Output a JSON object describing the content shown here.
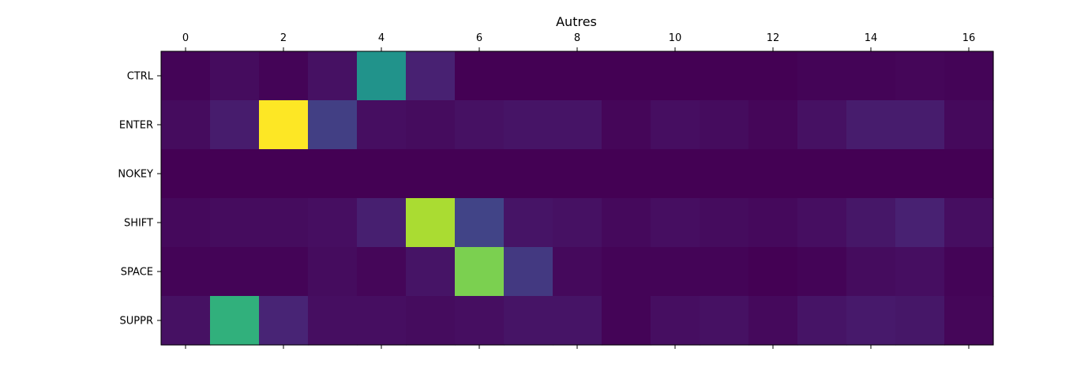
{
  "chart_data": {
    "type": "heatmap",
    "title": "Autres",
    "colormap": "viridis",
    "x": [
      0,
      1,
      2,
      3,
      4,
      5,
      6,
      7,
      8,
      9,
      10,
      11,
      12,
      13,
      14,
      15,
      16
    ],
    "x_ticks": [
      "0",
      "2",
      "4",
      "6",
      "8",
      "10",
      "12",
      "14",
      "16"
    ],
    "x_axis_position": "top",
    "rows": [
      "CTRL",
      "ENTER",
      "NOKEY",
      "SHIFT",
      "SPACE",
      "SUPPR"
    ],
    "values": [
      [
        0.01,
        0.04,
        0.01,
        0.06,
        0.51,
        0.12,
        0.0,
        0.0,
        0.0,
        0.0,
        0.0,
        0.0,
        0.0,
        0.01,
        0.01,
        0.02,
        0.01
      ],
      [
        0.04,
        0.1,
        1.0,
        0.23,
        0.05,
        0.04,
        0.06,
        0.07,
        0.07,
        0.02,
        0.05,
        0.04,
        0.02,
        0.06,
        0.1,
        0.1,
        0.03
      ],
      [
        0.0,
        0.0,
        0.0,
        0.0,
        0.0,
        0.0,
        0.0,
        0.0,
        0.0,
        0.0,
        0.0,
        0.0,
        0.0,
        0.0,
        0.0,
        0.0,
        0.0
      ],
      [
        0.03,
        0.04,
        0.04,
        0.05,
        0.11,
        0.88,
        0.25,
        0.07,
        0.06,
        0.03,
        0.05,
        0.04,
        0.03,
        0.05,
        0.08,
        0.12,
        0.05
      ],
      [
        0.01,
        0.01,
        0.01,
        0.04,
        0.02,
        0.07,
        0.8,
        0.21,
        0.03,
        0.01,
        0.01,
        0.01,
        0.0,
        0.01,
        0.04,
        0.05,
        0.01
      ],
      [
        0.06,
        0.66,
        0.13,
        0.05,
        0.05,
        0.04,
        0.05,
        0.07,
        0.07,
        0.01,
        0.05,
        0.06,
        0.03,
        0.07,
        0.09,
        0.08,
        0.02
      ]
    ]
  }
}
